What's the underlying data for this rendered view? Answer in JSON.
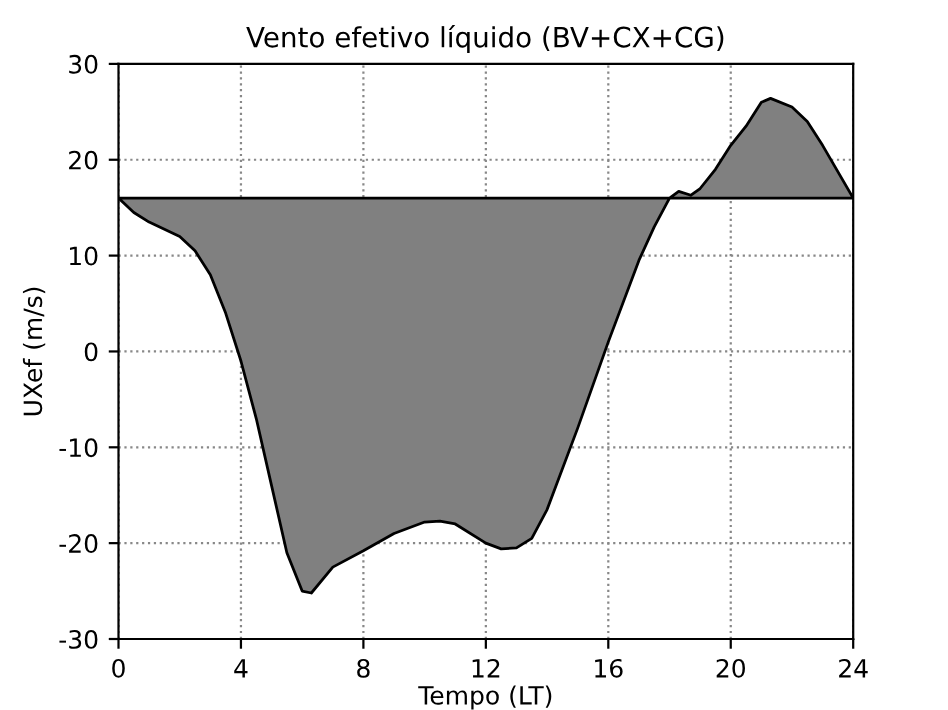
{
  "chart_data": {
    "type": "area",
    "title": "Vento efetivo líquido (BV+CX+CG)",
    "xlabel": "Tempo (LT)",
    "ylabel": "UXef (m/s)",
    "x": [
      0,
      0.5,
      1,
      2,
      2.5,
      3,
      3.5,
      4,
      4.5,
      5,
      5.5,
      6,
      6.3,
      7,
      8,
      9,
      10,
      10.5,
      11,
      12,
      12.5,
      13,
      13.5,
      14,
      15,
      16,
      17,
      17.5,
      18,
      18.3,
      18.7,
      19,
      19.5,
      20,
      20.5,
      21,
      21.3,
      22,
      22.5,
      23,
      24
    ],
    "series": [
      {
        "color": "#808080",
        "values": [
          16,
          14.5,
          13.5,
          12,
          10.5,
          8,
          4,
          -1,
          -7,
          -14,
          -21,
          -25,
          -25.2,
          -22.5,
          -20.8,
          -19,
          -17.8,
          -17.7,
          -18,
          -20,
          -20.6,
          -20.5,
          -19.5,
          -16.5,
          -8,
          1,
          9.5,
          13,
          16,
          16.7,
          16.3,
          17,
          19,
          21.5,
          23.5,
          26,
          26.4,
          25.5,
          24,
          21.5,
          16
        ]
      }
    ],
    "xlim": [
      0,
      24
    ],
    "ylim": [
      -30,
      30
    ],
    "xticks": [
      0,
      4,
      8,
      12,
      16,
      20,
      24
    ],
    "yticks": [
      -30,
      -20,
      -10,
      0,
      10,
      20,
      30
    ],
    "grid": true
  }
}
